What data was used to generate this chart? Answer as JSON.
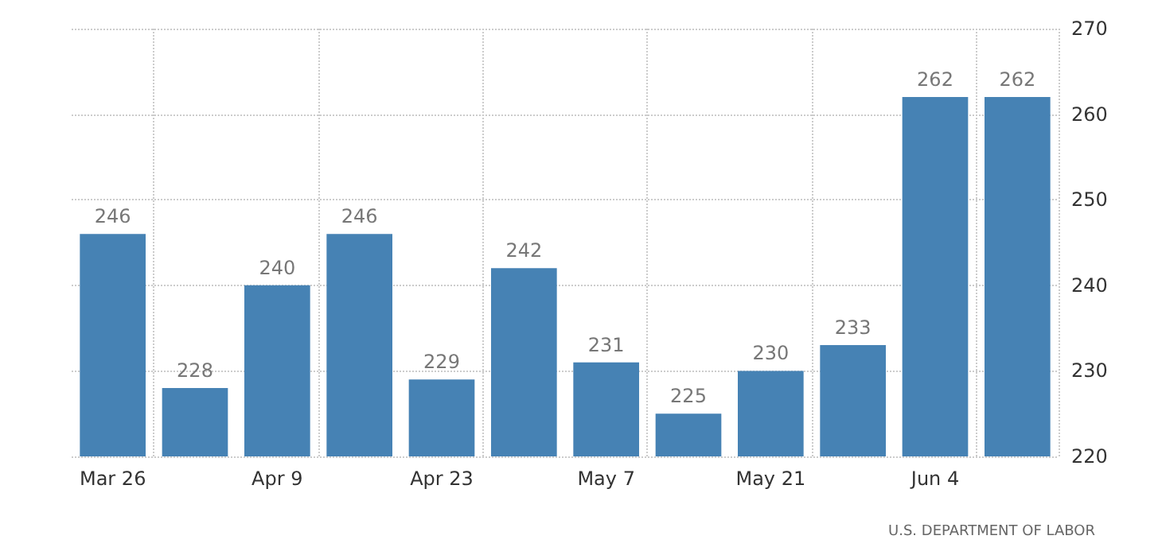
{
  "chart_data": {
    "type": "bar",
    "categories": [
      "Mar 26",
      null,
      "Apr 9",
      null,
      "Apr 23",
      null,
      "May 7",
      null,
      "May 21",
      null,
      "Jun 4",
      null
    ],
    "values": [
      246,
      228,
      240,
      246,
      229,
      242,
      231,
      225,
      230,
      233,
      262,
      262
    ],
    "color": "#4682b4",
    "ylim": [
      220,
      270
    ],
    "yticks": [
      220,
      230,
      240,
      250,
      260,
      270
    ],
    "grid": true,
    "data_labels": true,
    "annotations": [
      "U.S. DEPARTMENT OF LABOR"
    ]
  }
}
